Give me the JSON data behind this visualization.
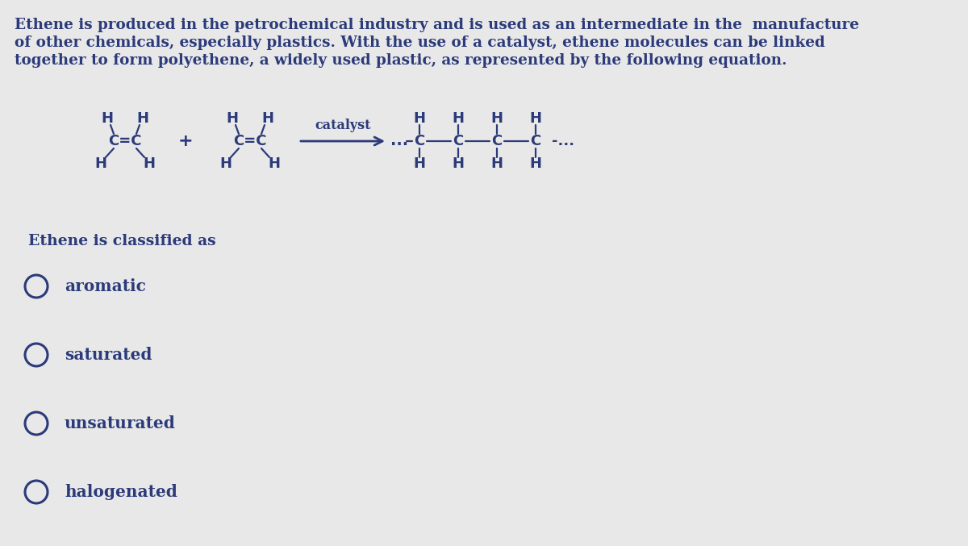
{
  "background_color": "#e8e8e8",
  "text_color": "#2b3a7a",
  "paragraph_lines": [
    "Ethene is produced in the petrochemical industry and is used as an intermediate in the  manufacture",
    "of other chemicals, especially plastics. With the use of a catalyst, ethene molecules can be linked",
    "together to form polyethene, a widely used plastic, as represented by the following equation."
  ],
  "paragraph_fontsize": 13.2,
  "question_text": "Ethene is classified as",
  "question_fontsize": 13.5,
  "options": [
    "aromatic",
    "saturated",
    "unsaturated",
    "halogenated"
  ],
  "options_fontsize": 14.5,
  "mol_fontsize": 13.0,
  "chain_fontsize": 13.0,
  "catalyst_fontsize": 11.5
}
